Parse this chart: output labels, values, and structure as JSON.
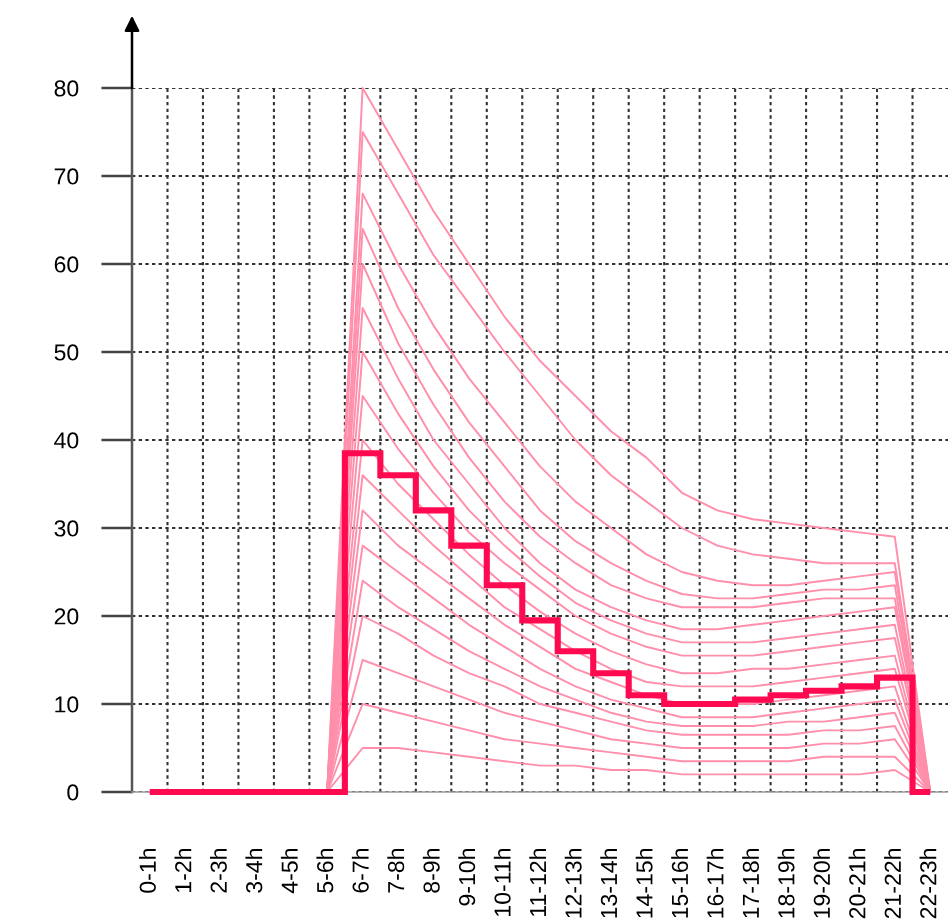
{
  "chart_data": {
    "type": "line",
    "categories": [
      "0-1h",
      "1-2h",
      "2-3h",
      "3-4h",
      "4-5h",
      "5-6h",
      "6-7h",
      "7-8h",
      "8-9h",
      "9-10h",
      "10-11h",
      "11-12h",
      "12-13h",
      "13-14h",
      "14-15h",
      "15-16h",
      "16-17h",
      "17-18h",
      "18-19h",
      "19-20h",
      "20-21h",
      "21-22h",
      "22-23h"
    ],
    "ylim": [
      0,
      80
    ],
    "yticks": [
      0,
      10,
      20,
      30,
      40,
      50,
      60,
      70,
      80
    ],
    "grid": true,
    "series": [
      {
        "color": "#ff8fab",
        "values": [
          0,
          0,
          0,
          0,
          0,
          0,
          80,
          73,
          66,
          60,
          54,
          49,
          45,
          41,
          38,
          34,
          32,
          31,
          30.5,
          30,
          29.5,
          29,
          0
        ]
      },
      {
        "color": "#ff8fab",
        "values": [
          0,
          0,
          0,
          0,
          0,
          0,
          75,
          68,
          61,
          55.5,
          50,
          45,
          40,
          36,
          33,
          30,
          28,
          27,
          26.5,
          26,
          26,
          26,
          0
        ]
      },
      {
        "color": "#ff8fab",
        "values": [
          0,
          0,
          0,
          0,
          0,
          0,
          68,
          60,
          53,
          47,
          42,
          37,
          33,
          30,
          27,
          25,
          24,
          23.5,
          23.5,
          24,
          24.5,
          25,
          0
        ]
      },
      {
        "color": "#ff8fab",
        "values": [
          0,
          0,
          0,
          0,
          0,
          0,
          64,
          55,
          48,
          42,
          37,
          32,
          28.5,
          26,
          24,
          22.5,
          22,
          22,
          22.5,
          23,
          23,
          23.5,
          0
        ]
      },
      {
        "color": "#ff8fab",
        "values": [
          0,
          0,
          0,
          0,
          0,
          0,
          60,
          51,
          44,
          38,
          33,
          29,
          26,
          23.5,
          22,
          21,
          21,
          21,
          21.5,
          22,
          22,
          22,
          0
        ]
      },
      {
        "color": "#ff8fab",
        "values": [
          0,
          0,
          0,
          0,
          0,
          0,
          55,
          47,
          40,
          35,
          30,
          26,
          23,
          21,
          19.5,
          18.5,
          18.5,
          19,
          19.5,
          20,
          20.5,
          21,
          0
        ]
      },
      {
        "color": "#ff8fab",
        "values": [
          0,
          0,
          0,
          0,
          0,
          0,
          50,
          43,
          37,
          32,
          28,
          24.5,
          21.5,
          19.5,
          18,
          17,
          17,
          17,
          17.5,
          18,
          18.5,
          19,
          0
        ]
      },
      {
        "color": "#ff8fab",
        "values": [
          0,
          0,
          0,
          0,
          0,
          0,
          45,
          39,
          34,
          29.5,
          26,
          23,
          20,
          18,
          16.5,
          15.5,
          15.5,
          15.5,
          16,
          16.5,
          17,
          17.5,
          0
        ]
      },
      {
        "color": "#ff8fab",
        "values": [
          0,
          0,
          0,
          0,
          0,
          0,
          40,
          35,
          31,
          27,
          23.5,
          20.5,
          18,
          16,
          14.5,
          13.5,
          13.5,
          14,
          14,
          14.5,
          15,
          15.5,
          0
        ]
      },
      {
        "color": "#ff8fab",
        "values": [
          0,
          0,
          0,
          0,
          0,
          0,
          36,
          32,
          28,
          24.5,
          21,
          18.5,
          16,
          14,
          12.5,
          12,
          12,
          12,
          12.5,
          13,
          13.5,
          14,
          0
        ]
      },
      {
        "color": "#ff8fab",
        "values": [
          0,
          0,
          0,
          0,
          0,
          0,
          32,
          28,
          25,
          22,
          19,
          16.5,
          14,
          12.5,
          11,
          10,
          10,
          10,
          10.5,
          11,
          11.5,
          12,
          0
        ]
      },
      {
        "color": "#ff8fab",
        "values": [
          0,
          0,
          0,
          0,
          0,
          0,
          28,
          25,
          22,
          19,
          16.5,
          14,
          12,
          10.5,
          9.5,
          8.5,
          8.5,
          8.5,
          9,
          9.5,
          10,
          10.5,
          0
        ]
      },
      {
        "color": "#ff8fab",
        "values": [
          0,
          0,
          0,
          0,
          0,
          0,
          24,
          21,
          18.5,
          16,
          14,
          12,
          10.5,
          9,
          8,
          7.5,
          7.5,
          7.5,
          8,
          8,
          8.5,
          9,
          0
        ]
      },
      {
        "color": "#ff8fab",
        "values": [
          0,
          0,
          0,
          0,
          0,
          0,
          20,
          18,
          15.5,
          13.5,
          12,
          10,
          9,
          8,
          7,
          6.5,
          6.5,
          6.5,
          6.5,
          7,
          7,
          7.5,
          0
        ]
      },
      {
        "color": "#ff8fab",
        "values": [
          0,
          0,
          0,
          0,
          0,
          0,
          15,
          13.5,
          12,
          10.5,
          9,
          8,
          7,
          6,
          5.5,
          5,
          5,
          5,
          5,
          5.5,
          5.5,
          6,
          0
        ]
      },
      {
        "color": "#ff8fab",
        "values": [
          0,
          0,
          0,
          0,
          0,
          0,
          10,
          9,
          8,
          7,
          6,
          5.5,
          5,
          4.5,
          4,
          3.5,
          3.5,
          3.5,
          3.5,
          4,
          4,
          4,
          0
        ]
      },
      {
        "color": "#ff8fab",
        "values": [
          0,
          0,
          0,
          0,
          0,
          0,
          5,
          5,
          4.5,
          4,
          3.5,
          3,
          3,
          2.5,
          2.5,
          2,
          2,
          2,
          2,
          2,
          2,
          2.5,
          0
        ]
      },
      {
        "type": "step",
        "color": "#ff0a50",
        "values": [
          0,
          0,
          0,
          0,
          0,
          0,
          38.5,
          36,
          32,
          28,
          23.5,
          19.5,
          16,
          13.5,
          11,
          10,
          10,
          10.5,
          11,
          11.5,
          12,
          13,
          0
        ]
      }
    ]
  }
}
